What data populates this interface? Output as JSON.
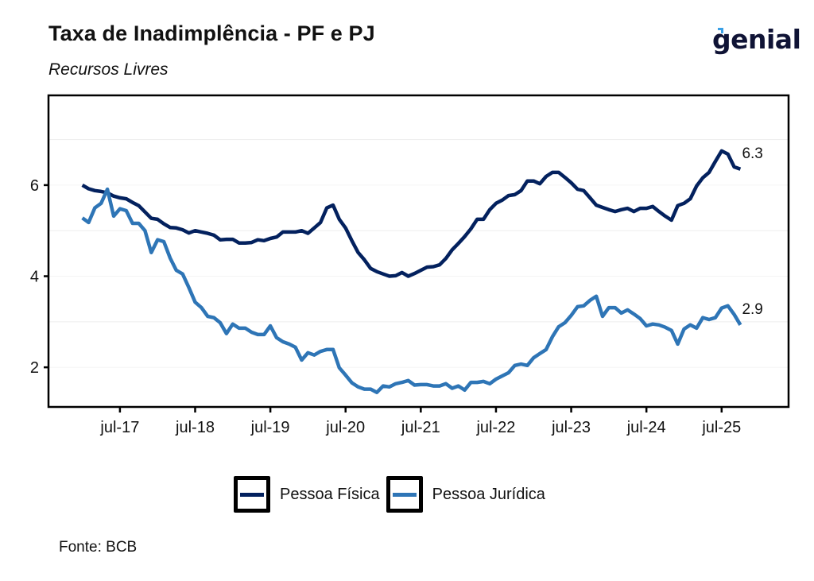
{
  "header": {
    "title": "Taxa de Inadimplência - PF e PJ",
    "subtitle": "Recursos Livres",
    "logo_text": "genial"
  },
  "footer": {
    "source": "Fonte: BCB"
  },
  "colors": {
    "pf": "#03215e",
    "pj": "#2e75b6",
    "grid": "#ededed",
    "axis": "#000000"
  },
  "chart_data": {
    "type": "line",
    "title": "Taxa de Inadimplência - PF e PJ",
    "subtitle": "Recursos Livres",
    "xlabel": "",
    "ylabel": "",
    "x_start": "2017-01",
    "x_frequency": "monthly",
    "x_ticks": [
      "jul-17",
      "jul-18",
      "jul-19",
      "jul-20",
      "jul-21",
      "jul-22",
      "jul-23",
      "jul-24",
      "jul-25"
    ],
    "x_tick_years": [
      2017.5,
      2018.5,
      2019.5,
      2020.5,
      2021.5,
      2022.5,
      2023.5,
      2024.5,
      2025.5
    ],
    "xlim": [
      2016.55,
      2026.39
    ],
    "y_ticks": [
      "2",
      "4",
      "6"
    ],
    "y_tick_values": [
      2,
      4,
      6
    ],
    "y_minor_grid": [
      3,
      5,
      7
    ],
    "ylim": [
      1.13,
      7.97
    ],
    "grid": true,
    "legend_position": "bottom",
    "series": [
      {
        "name": "Pessoa Física",
        "end_label": "6.3",
        "values": [
          6.0,
          5.92,
          5.88,
          5.86,
          5.83,
          5.76,
          5.72,
          5.7,
          5.62,
          5.55,
          5.41,
          5.27,
          5.25,
          5.15,
          5.07,
          5.06,
          5.02,
          4.95,
          5.0,
          4.97,
          4.94,
          4.9,
          4.8,
          4.81,
          4.81,
          4.73,
          4.73,
          4.74,
          4.8,
          4.78,
          4.83,
          4.86,
          4.97,
          4.97,
          4.97,
          5.0,
          4.94,
          5.06,
          5.18,
          5.5,
          5.56,
          5.25,
          5.06,
          4.78,
          4.52,
          4.36,
          4.17,
          4.1,
          4.05,
          4.0,
          4.01,
          4.08,
          4.0,
          4.06,
          4.13,
          4.2,
          4.21,
          4.25,
          4.39,
          4.58,
          4.72,
          4.87,
          5.04,
          5.25,
          5.25,
          5.46,
          5.6,
          5.67,
          5.77,
          5.79,
          5.88,
          6.09,
          6.09,
          6.03,
          6.19,
          6.28,
          6.28,
          6.17,
          6.05,
          5.91,
          5.88,
          5.72,
          5.56,
          5.51,
          5.46,
          5.42,
          5.46,
          5.49,
          5.42,
          5.49,
          5.49,
          5.53,
          5.42,
          5.32,
          5.23,
          5.55,
          5.6,
          5.7,
          5.98,
          6.16,
          6.28,
          6.52,
          6.75,
          6.68,
          6.4,
          6.35
        ]
      },
      {
        "name": "Pessoa Jurídica",
        "end_label": "2.9",
        "values": [
          5.28,
          5.18,
          5.5,
          5.6,
          5.91,
          5.32,
          5.48,
          5.44,
          5.16,
          5.16,
          5.0,
          4.52,
          4.8,
          4.76,
          4.4,
          4.13,
          4.05,
          3.75,
          3.43,
          3.31,
          3.12,
          3.09,
          2.98,
          2.74,
          2.95,
          2.86,
          2.86,
          2.77,
          2.72,
          2.72,
          2.91,
          2.65,
          2.56,
          2.51,
          2.44,
          2.16,
          2.32,
          2.27,
          2.35,
          2.39,
          2.39,
          1.99,
          1.83,
          1.66,
          1.57,
          1.52,
          1.52,
          1.45,
          1.59,
          1.57,
          1.64,
          1.67,
          1.71,
          1.61,
          1.62,
          1.62,
          1.59,
          1.59,
          1.64,
          1.54,
          1.59,
          1.5,
          1.67,
          1.67,
          1.69,
          1.64,
          1.74,
          1.81,
          1.88,
          2.04,
          2.07,
          2.04,
          2.21,
          2.3,
          2.39,
          2.67,
          2.89,
          2.98,
          3.14,
          3.33,
          3.35,
          3.47,
          3.56,
          3.12,
          3.31,
          3.31,
          3.19,
          3.26,
          3.17,
          3.07,
          2.91,
          2.95,
          2.93,
          2.88,
          2.81,
          2.51,
          2.84,
          2.93,
          2.86,
          3.09,
          3.05,
          3.09,
          3.3,
          3.35,
          3.16,
          2.93
        ]
      }
    ]
  }
}
